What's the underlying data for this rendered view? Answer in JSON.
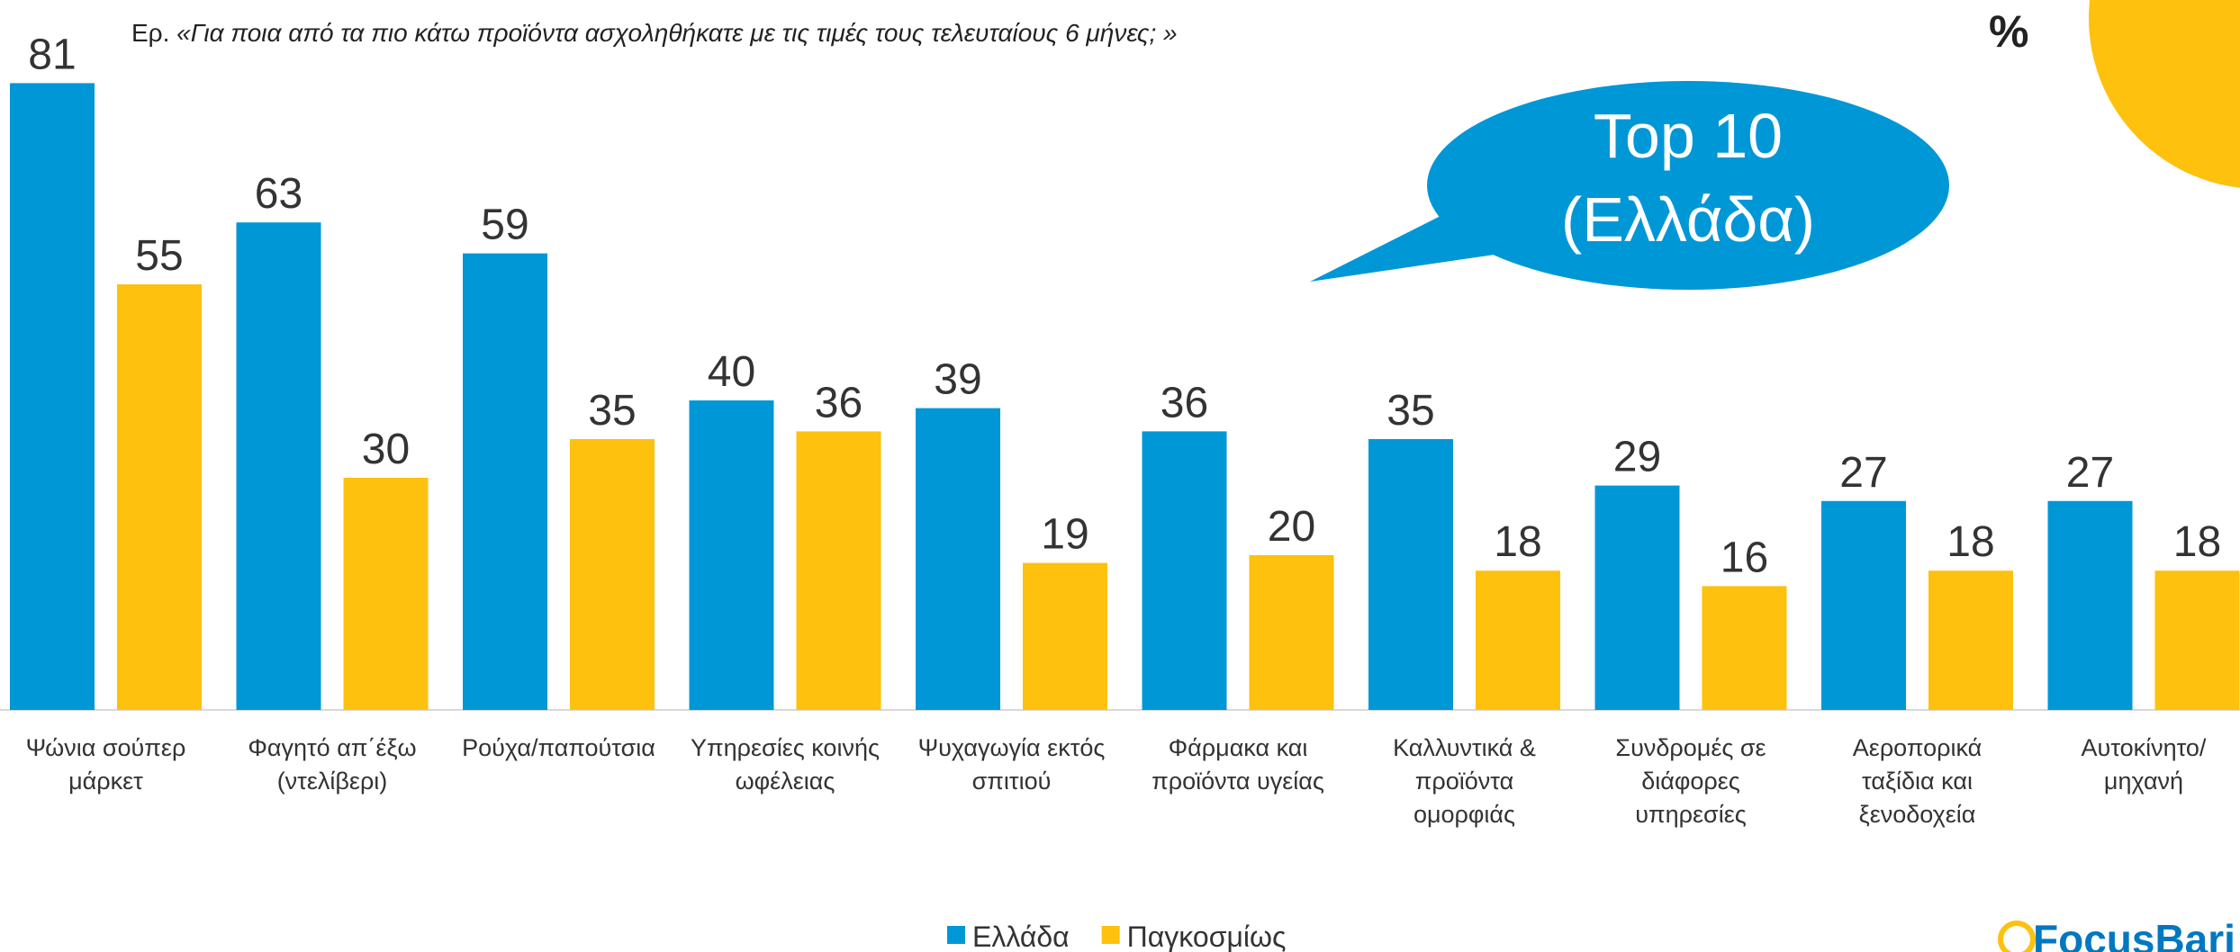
{
  "chart_data": {
    "type": "bar",
    "question_prefix": "Ερ.",
    "question": "«Για ποια από τα πιο κάτω προϊόντα ασχοληθήκατε με τις τιμές τους τελευταίους 6 μήνες; »",
    "unit_label": "%",
    "callout": [
      "Top 10",
      "(Ελλάδα)"
    ],
    "logo": "FocusBari",
    "categories": [
      "Ψώνια σούπερ\nμάρκετ",
      "Φαγητό απ΄έξω\n(ντελίβερι)",
      "Ρούχα/παπούτσια",
      "Υπηρεσίες κοινής\nωφέλειας",
      "Ψυχαγωγία εκτός\nσπιτιού",
      "Φάρμακα και\nπροϊόντα υγείας",
      "Καλλυντικά &\nπροϊόντα\nομορφιάς",
      "Συνδρομές σε\nδιάφορες\nυπηρεσίες",
      "Αεροπορικά\nταξίδια και\nξενοδοχεία",
      "Αυτοκίνητο/\nμηχανή"
    ],
    "series": [
      {
        "name": "Ελλάδα",
        "color": "#0097d7",
        "values": [
          81,
          63,
          59,
          40,
          39,
          36,
          35,
          29,
          27,
          27
        ]
      },
      {
        "name": "Παγκοσμίως",
        "color": "#fdc10e",
        "values": [
          55,
          30,
          35,
          36,
          19,
          20,
          18,
          16,
          18,
          18
        ]
      }
    ],
    "legend": "bottom"
  }
}
